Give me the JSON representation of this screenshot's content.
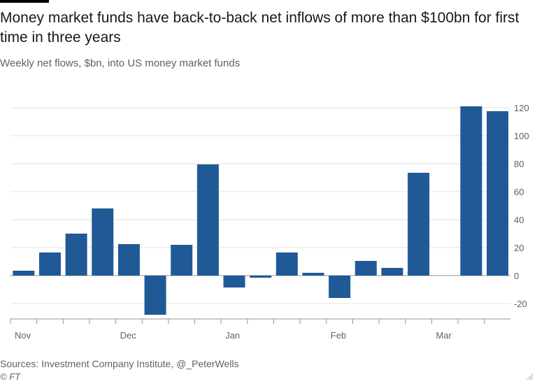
{
  "chart_data": {
    "type": "bar",
    "title": "Money market funds have back-to-back net inflows of more than $100bn for first time in three years",
    "subtitle": "Weekly net flows, $bn, into US money market funds",
    "xlabel": "",
    "ylabel": "",
    "ylim": [
      -30,
      125
    ],
    "yticks": [
      -20,
      0,
      20,
      40,
      60,
      80,
      100,
      120
    ],
    "x_tick_labels": [
      "Nov",
      "Dec",
      "Jan",
      "Feb",
      "Mar"
    ],
    "x_tick_label_slots": [
      0,
      4,
      8,
      12,
      16
    ],
    "slots": 19,
    "values": [
      3.5,
      16.5,
      30,
      48,
      22.5,
      -28,
      22,
      79.5,
      -8.5,
      -1.5,
      16.5,
      2,
      -16,
      10.5,
      5.5,
      73.5,
      null,
      121,
      117.5
    ],
    "bar_color": "#1f5a96",
    "grid": true
  },
  "source": "Sources: Investment Company Institute, @_PeterWells",
  "credit": "© FT"
}
